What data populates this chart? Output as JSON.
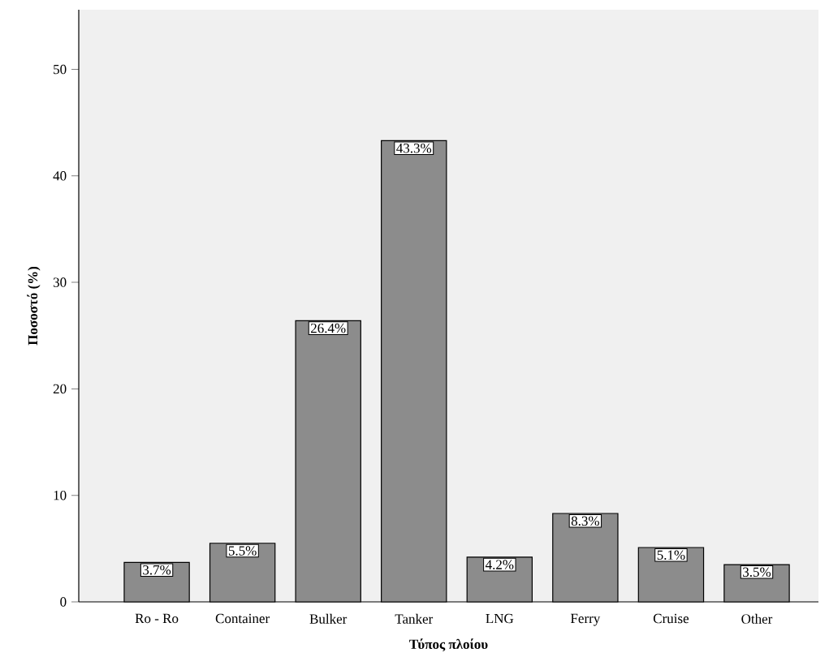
{
  "chart_data": {
    "type": "bar",
    "xlabel": "Τύπος πλοίου",
    "ylabel": "Ποσοστό (%)",
    "categories": [
      "Ro - Ro",
      "Container",
      "Bulker",
      "Tanker",
      "LNG",
      "Ferry",
      "Cruise",
      "Other"
    ],
    "values": [
      3.7,
      5.5,
      26.4,
      43.3,
      4.2,
      8.3,
      5.1,
      3.5
    ],
    "value_labels": [
      "3.7%",
      "5.5%",
      "26.4%",
      "43.3%",
      "4.2%",
      "8.3%",
      "5.1%",
      "3.5%"
    ],
    "color": "#000000",
    "ylim": [
      0,
      55.6
    ],
    "yticks": [
      0,
      10,
      20,
      30,
      40,
      50
    ]
  }
}
